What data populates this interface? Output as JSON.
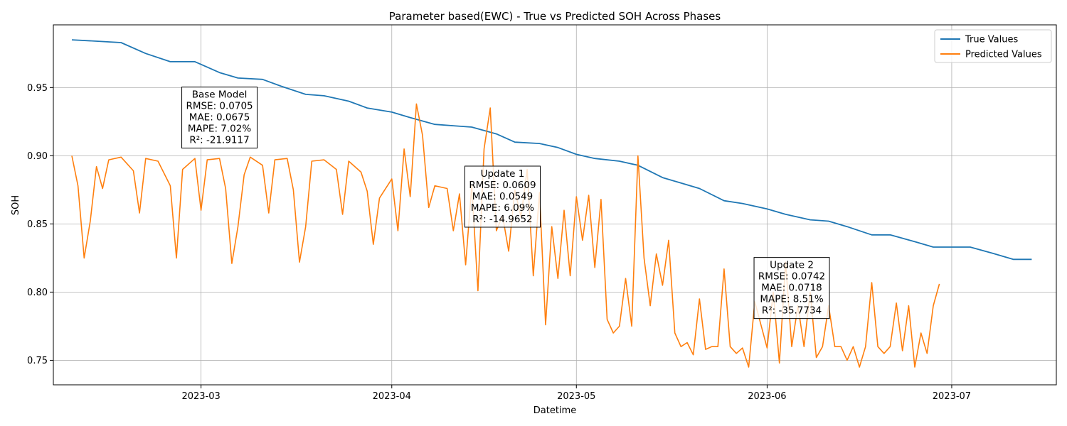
{
  "chart_data": {
    "type": "line",
    "title": "Parameter based(EWC) - True vs Predicted SOH Across Phases",
    "xlabel": "Datetime",
    "ylabel": "SOH",
    "xlim": [
      "2023-02-05",
      "2023-07-18"
    ],
    "ylim": [
      0.732,
      0.996
    ],
    "xticks": [
      {
        "date": "2023-03-01",
        "label": "2023-03"
      },
      {
        "date": "2023-04-01",
        "label": "2023-04"
      },
      {
        "date": "2023-05-01",
        "label": "2023-05"
      },
      {
        "date": "2023-06-01",
        "label": "2023-06"
      },
      {
        "date": "2023-07-01",
        "label": "2023-07"
      }
    ],
    "yticks": [
      0.75,
      0.8,
      0.85,
      0.9,
      0.95
    ],
    "grid": true,
    "legend": {
      "position": "top-right"
    },
    "colors": {
      "true": "#1f77b4",
      "predicted": "#ff7f0e"
    },
    "series": [
      {
        "name": "True Values",
        "color": "#1f77b4",
        "points": [
          [
            "2023-02-08",
            0.985
          ],
          [
            "2023-02-12",
            0.984
          ],
          [
            "2023-02-16",
            0.983
          ],
          [
            "2023-02-20",
            0.975
          ],
          [
            "2023-02-24",
            0.969
          ],
          [
            "2023-02-28",
            0.969
          ],
          [
            "2023-03-01",
            0.967
          ],
          [
            "2023-03-04",
            0.961
          ],
          [
            "2023-03-07",
            0.957
          ],
          [
            "2023-03-11",
            0.956
          ],
          [
            "2023-03-14",
            0.951
          ],
          [
            "2023-03-18",
            0.945
          ],
          [
            "2023-03-21",
            0.944
          ],
          [
            "2023-03-25",
            0.94
          ],
          [
            "2023-03-28",
            0.935
          ],
          [
            "2023-04-01",
            0.932
          ],
          [
            "2023-04-04",
            0.928
          ],
          [
            "2023-04-08",
            0.923
          ],
          [
            "2023-04-11",
            0.922
          ],
          [
            "2023-04-14",
            0.921
          ],
          [
            "2023-04-18",
            0.916
          ],
          [
            "2023-04-21",
            0.91
          ],
          [
            "2023-04-25",
            0.909
          ],
          [
            "2023-04-28",
            0.906
          ],
          [
            "2023-05-01",
            0.901
          ],
          [
            "2023-05-04",
            0.898
          ],
          [
            "2023-05-08",
            0.896
          ],
          [
            "2023-05-11",
            0.893
          ],
          [
            "2023-05-15",
            0.884
          ],
          [
            "2023-05-18",
            0.88
          ],
          [
            "2023-05-21",
            0.876
          ],
          [
            "2023-05-25",
            0.867
          ],
          [
            "2023-05-28",
            0.865
          ],
          [
            "2023-06-01",
            0.861
          ],
          [
            "2023-06-04",
            0.857
          ],
          [
            "2023-06-08",
            0.853
          ],
          [
            "2023-06-11",
            0.852
          ],
          [
            "2023-06-14",
            0.848
          ],
          [
            "2023-06-18",
            0.842
          ],
          [
            "2023-06-21",
            0.842
          ],
          [
            "2023-06-25",
            0.837
          ],
          [
            "2023-06-28",
            0.833
          ],
          [
            "2023-07-01",
            0.833
          ],
          [
            "2023-07-04",
            0.833
          ],
          [
            "2023-07-08",
            0.828
          ],
          [
            "2023-07-11",
            0.824
          ],
          [
            "2023-07-14",
            0.824
          ]
        ]
      },
      {
        "name": "Predicted Values",
        "color": "#ff7f0e",
        "points": [
          [
            "2023-02-08",
            0.9
          ],
          [
            "2023-02-09",
            0.878
          ],
          [
            "2023-02-10",
            0.825
          ],
          [
            "2023-02-11",
            0.852
          ],
          [
            "2023-02-12",
            0.892
          ],
          [
            "2023-02-13",
            0.876
          ],
          [
            "2023-02-14",
            0.897
          ],
          [
            "2023-02-16",
            0.899
          ],
          [
            "2023-02-18",
            0.889
          ],
          [
            "2023-02-19",
            0.858
          ],
          [
            "2023-02-20",
            0.898
          ],
          [
            "2023-02-22",
            0.896
          ],
          [
            "2023-02-24",
            0.878
          ],
          [
            "2023-02-25",
            0.825
          ],
          [
            "2023-02-26",
            0.89
          ],
          [
            "2023-02-28",
            0.898
          ],
          [
            "2023-03-01",
            0.86
          ],
          [
            "2023-03-02",
            0.897
          ],
          [
            "2023-03-04",
            0.898
          ],
          [
            "2023-03-05",
            0.876
          ],
          [
            "2023-03-06",
            0.821
          ],
          [
            "2023-03-07",
            0.848
          ],
          [
            "2023-03-08",
            0.886
          ],
          [
            "2023-03-09",
            0.899
          ],
          [
            "2023-03-11",
            0.893
          ],
          [
            "2023-03-12",
            0.858
          ],
          [
            "2023-03-13",
            0.897
          ],
          [
            "2023-03-15",
            0.898
          ],
          [
            "2023-03-16",
            0.875
          ],
          [
            "2023-03-17",
            0.822
          ],
          [
            "2023-03-18",
            0.848
          ],
          [
            "2023-03-19",
            0.896
          ],
          [
            "2023-03-21",
            0.897
          ],
          [
            "2023-03-23",
            0.89
          ],
          [
            "2023-03-24",
            0.857
          ],
          [
            "2023-03-25",
            0.896
          ],
          [
            "2023-03-27",
            0.888
          ],
          [
            "2023-03-28",
            0.874
          ],
          [
            "2023-03-29",
            0.835
          ],
          [
            "2023-03-30",
            0.869
          ],
          [
            "2023-04-01",
            0.883
          ],
          [
            "2023-04-02",
            0.845
          ],
          [
            "2023-04-03",
            0.905
          ],
          [
            "2023-04-04",
            0.87
          ],
          [
            "2023-04-05",
            0.938
          ],
          [
            "2023-04-06",
            0.915
          ],
          [
            "2023-04-07",
            0.862
          ],
          [
            "2023-04-08",
            0.878
          ],
          [
            "2023-04-10",
            0.876
          ],
          [
            "2023-04-11",
            0.845
          ],
          [
            "2023-04-12",
            0.872
          ],
          [
            "2023-04-13",
            0.82
          ],
          [
            "2023-04-14",
            0.878
          ],
          [
            "2023-04-15",
            0.801
          ],
          [
            "2023-04-16",
            0.905
          ],
          [
            "2023-04-17",
            0.935
          ],
          [
            "2023-04-18",
            0.845
          ],
          [
            "2023-04-19",
            0.856
          ],
          [
            "2023-04-20",
            0.83
          ],
          [
            "2023-04-21",
            0.875
          ],
          [
            "2023-04-22",
            0.855
          ],
          [
            "2023-04-23",
            0.89
          ],
          [
            "2023-04-24",
            0.812
          ],
          [
            "2023-04-25",
            0.873
          ],
          [
            "2023-04-26",
            0.776
          ],
          [
            "2023-04-27",
            0.848
          ],
          [
            "2023-04-28",
            0.81
          ],
          [
            "2023-04-29",
            0.86
          ],
          [
            "2023-04-30",
            0.812
          ],
          [
            "2023-05-01",
            0.87
          ],
          [
            "2023-05-02",
            0.838
          ],
          [
            "2023-05-03",
            0.871
          ],
          [
            "2023-05-04",
            0.818
          ],
          [
            "2023-05-05",
            0.868
          ],
          [
            "2023-05-06",
            0.78
          ],
          [
            "2023-05-07",
            0.77
          ],
          [
            "2023-05-08",
            0.775
          ],
          [
            "2023-05-09",
            0.81
          ],
          [
            "2023-05-10",
            0.775
          ],
          [
            "2023-05-11",
            0.9
          ],
          [
            "2023-05-12",
            0.825
          ],
          [
            "2023-05-13",
            0.79
          ],
          [
            "2023-05-14",
            0.828
          ],
          [
            "2023-05-15",
            0.805
          ],
          [
            "2023-05-16",
            0.838
          ],
          [
            "2023-05-17",
            0.77
          ],
          [
            "2023-05-18",
            0.76
          ],
          [
            "2023-05-19",
            0.763
          ],
          [
            "2023-05-20",
            0.754
          ],
          [
            "2023-05-21",
            0.795
          ],
          [
            "2023-05-22",
            0.758
          ],
          [
            "2023-05-23",
            0.76
          ],
          [
            "2023-05-24",
            0.76
          ],
          [
            "2023-05-25",
            0.817
          ],
          [
            "2023-05-26",
            0.76
          ],
          [
            "2023-05-27",
            0.755
          ],
          [
            "2023-05-28",
            0.759
          ],
          [
            "2023-05-29",
            0.745
          ],
          [
            "2023-05-30",
            0.793
          ],
          [
            "2023-06-01",
            0.759
          ],
          [
            "2023-06-02",
            0.8
          ],
          [
            "2023-06-03",
            0.748
          ],
          [
            "2023-06-04",
            0.822
          ],
          [
            "2023-06-05",
            0.76
          ],
          [
            "2023-06-06",
            0.79
          ],
          [
            "2023-06-07",
            0.76
          ],
          [
            "2023-06-08",
            0.8
          ],
          [
            "2023-06-09",
            0.752
          ],
          [
            "2023-06-10",
            0.76
          ],
          [
            "2023-06-11",
            0.79
          ],
          [
            "2023-06-12",
            0.76
          ],
          [
            "2023-06-13",
            0.76
          ],
          [
            "2023-06-14",
            0.75
          ],
          [
            "2023-06-15",
            0.76
          ],
          [
            "2023-06-16",
            0.745
          ],
          [
            "2023-06-17",
            0.76
          ],
          [
            "2023-06-18",
            0.807
          ],
          [
            "2023-06-19",
            0.76
          ],
          [
            "2023-06-20",
            0.755
          ],
          [
            "2023-06-21",
            0.76
          ],
          [
            "2023-06-22",
            0.792
          ],
          [
            "2023-06-23",
            0.757
          ],
          [
            "2023-06-24",
            0.79
          ],
          [
            "2023-06-25",
            0.745
          ],
          [
            "2023-06-26",
            0.77
          ],
          [
            "2023-06-27",
            0.755
          ],
          [
            "2023-06-28",
            0.79
          ],
          [
            "2023-06-29",
            0.806
          ]
        ]
      }
    ],
    "annotations": [
      {
        "date": "2023-03-04",
        "y": 0.928,
        "lines": [
          "Base Model",
          "RMSE: 0.0705",
          "MAE: 0.0675",
          "MAPE: 7.02%",
          "R²: -21.9117"
        ]
      },
      {
        "date": "2023-04-19",
        "y": 0.87,
        "lines": [
          "Update 1",
          "RMSE: 0.0609",
          "MAE: 0.0549",
          "MAPE: 6.09%",
          "R²: -14.9652"
        ]
      },
      {
        "date": "2023-06-05",
        "y": 0.803,
        "lines": [
          "Update 2",
          "RMSE: 0.0742",
          "MAE: 0.0718",
          "MAPE: 8.51%",
          "R²: -35.7734"
        ]
      }
    ]
  }
}
